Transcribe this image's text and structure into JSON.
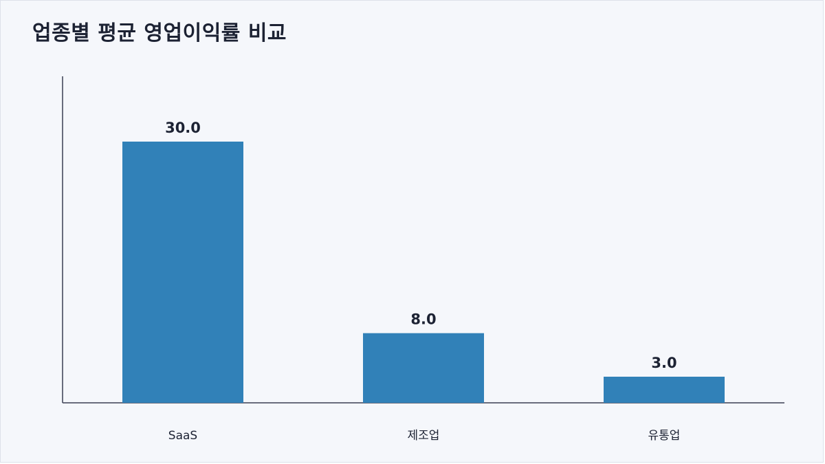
{
  "chart_data": {
    "type": "bar",
    "title": "업종별 평균 영업이익률 비교",
    "categories": [
      "SaaS",
      "제조업",
      "유통업"
    ],
    "values": [
      30.0,
      8.0,
      3.0
    ],
    "value_labels": [
      "30.0",
      "8.0",
      "3.0"
    ],
    "xlabel": "",
    "ylabel": "",
    "ylim": [
      0,
      37.5
    ],
    "grid": false,
    "legend": "none",
    "colors": {
      "bar": "#3181b8",
      "axis": "#3a3f52",
      "text": "#1c2233",
      "background": "#f5f7fb"
    }
  }
}
